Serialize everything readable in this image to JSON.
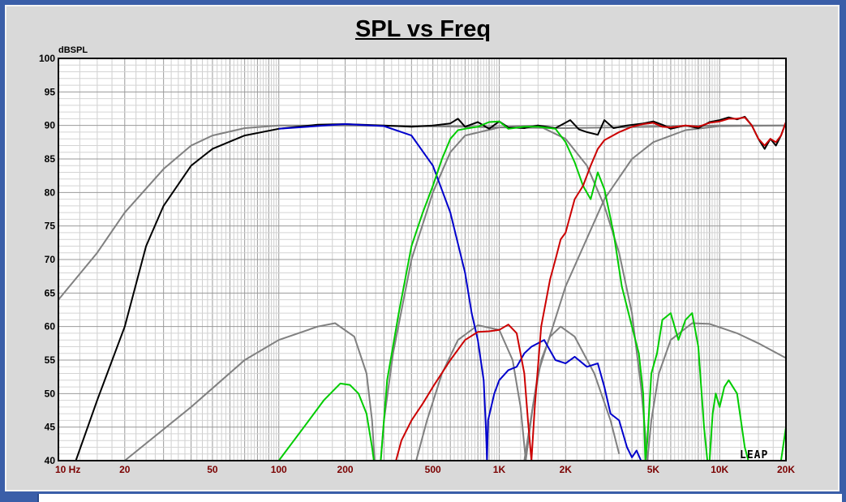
{
  "chart_data": {
    "type": "line",
    "title": "SPL vs Freq",
    "ylabel": "dBSPL",
    "xlabel": "",
    "x_scale": "log",
    "xlim": [
      10,
      20000
    ],
    "ylim": [
      40,
      100
    ],
    "grid": true,
    "x_tick_labels": [
      {
        "value": 10,
        "label": "10 Hz"
      },
      {
        "value": 20,
        "label": "20"
      },
      {
        "value": 50,
        "label": "50"
      },
      {
        "value": 100,
        "label": "100"
      },
      {
        "value": 200,
        "label": "200"
      },
      {
        "value": 500,
        "label": "500"
      },
      {
        "value": 1000,
        "label": "1K"
      },
      {
        "value": 2000,
        "label": "2K"
      },
      {
        "value": 5000,
        "label": "5K"
      },
      {
        "value": 10000,
        "label": "10K"
      },
      {
        "value": 20000,
        "label": "20K"
      }
    ],
    "y_tick_labels": [
      "40",
      "45",
      "50",
      "55",
      "60",
      "65",
      "70",
      "75",
      "80",
      "85",
      "90",
      "95",
      "100"
    ],
    "watermark": "LEAP",
    "series": [
      {
        "color": "#808080",
        "points": [
          [
            10,
            64
          ],
          [
            15,
            71
          ],
          [
            20,
            77
          ],
          [
            30,
            83.5
          ],
          [
            40,
            87
          ],
          [
            50,
            88.5
          ],
          [
            70,
            89.6
          ],
          [
            100,
            90
          ],
          [
            200,
            90
          ],
          [
            400,
            89.9
          ],
          [
            700,
            89.8
          ],
          [
            1000,
            89.7
          ],
          [
            2000,
            89.6
          ],
          [
            5000,
            89.8
          ],
          [
            10000,
            90
          ],
          [
            20000,
            90
          ]
        ]
      },
      {
        "color": "#808080",
        "points": [
          [
            10,
            30
          ],
          [
            20,
            40
          ],
          [
            40,
            48
          ],
          [
            70,
            55
          ],
          [
            100,
            58
          ],
          [
            150,
            60
          ],
          [
            180,
            60.5
          ],
          [
            220,
            58.5
          ],
          [
            250,
            53
          ],
          [
            265,
            46
          ],
          [
            272,
            40
          ]
        ]
      },
      {
        "color": "#808080",
        "points": [
          [
            290,
            40
          ],
          [
            300,
            46
          ],
          [
            330,
            56
          ],
          [
            400,
            70
          ],
          [
            500,
            80
          ],
          [
            600,
            86
          ],
          [
            700,
            88.5
          ],
          [
            1000,
            89.7
          ],
          [
            1500,
            90
          ],
          [
            2000,
            88
          ],
          [
            2500,
            84
          ],
          [
            3000,
            78
          ],
          [
            3500,
            71
          ],
          [
            4000,
            62
          ],
          [
            4400,
            51
          ],
          [
            4600,
            44
          ],
          [
            4700,
            40
          ]
        ]
      },
      {
        "color": "#808080",
        "points": [
          [
            420,
            40
          ],
          [
            470,
            46
          ],
          [
            550,
            53
          ],
          [
            650,
            58
          ],
          [
            800,
            60.2
          ],
          [
            1000,
            59.5
          ],
          [
            1150,
            55
          ],
          [
            1250,
            48
          ],
          [
            1320,
            40
          ],
          [
            1420,
            48
          ],
          [
            1550,
            55
          ],
          [
            1700,
            58.5
          ],
          [
            1900,
            60
          ],
          [
            2200,
            58.5
          ],
          [
            2700,
            53
          ],
          [
            3200,
            46
          ],
          [
            3500,
            41
          ]
        ]
      },
      {
        "color": "#808080",
        "points": [
          [
            1300,
            40
          ],
          [
            1500,
            53
          ],
          [
            2000,
            66
          ],
          [
            3000,
            79
          ],
          [
            4000,
            85
          ],
          [
            5000,
            87.5
          ],
          [
            7000,
            89.3
          ],
          [
            10000,
            89.9
          ],
          [
            20000,
            90
          ]
        ]
      },
      {
        "color": "#808080",
        "points": [
          [
            4700,
            40
          ],
          [
            4900,
            46
          ],
          [
            5300,
            53
          ],
          [
            6000,
            58
          ],
          [
            7500,
            60.5
          ],
          [
            9000,
            60.4
          ],
          [
            12000,
            59
          ],
          [
            15000,
            57.5
          ],
          [
            20000,
            55.3
          ]
        ]
      },
      {
        "color": "#000000",
        "points": [
          [
            10,
            35
          ],
          [
            12,
            40
          ],
          [
            15,
            49
          ],
          [
            20,
            60
          ],
          [
            25,
            72
          ],
          [
            30,
            78
          ],
          [
            40,
            84
          ],
          [
            50,
            86.5
          ],
          [
            70,
            88.5
          ],
          [
            100,
            89.5
          ],
          [
            150,
            90.1
          ],
          [
            200,
            90.2
          ],
          [
            300,
            90
          ],
          [
            400,
            89.8
          ],
          [
            500,
            90
          ],
          [
            600,
            90.3
          ],
          [
            650,
            91
          ],
          [
            700,
            89.8
          ],
          [
            800,
            90.5
          ],
          [
            900,
            89.5
          ],
          [
            1000,
            90.6
          ],
          [
            1100,
            89.7
          ],
          [
            1300,
            89.6
          ],
          [
            1500,
            90
          ],
          [
            1800,
            89.6
          ],
          [
            2100,
            90.8
          ],
          [
            2300,
            89.4
          ],
          [
            2500,
            89
          ],
          [
            2800,
            88.6
          ],
          [
            3000,
            90.8
          ],
          [
            3300,
            89.6
          ],
          [
            3800,
            90
          ],
          [
            4500,
            90.3
          ],
          [
            5000,
            90.6
          ],
          [
            5600,
            90
          ],
          [
            6000,
            89.5
          ],
          [
            7000,
            90
          ],
          [
            8000,
            89.6
          ],
          [
            9000,
            90.5
          ],
          [
            10000,
            90.8
          ],
          [
            11000,
            91.2
          ],
          [
            12000,
            90.9
          ],
          [
            13000,
            91.3
          ],
          [
            14000,
            90
          ],
          [
            15000,
            88
          ],
          [
            16000,
            86.5
          ],
          [
            17000,
            88
          ],
          [
            18000,
            87
          ],
          [
            19000,
            88.5
          ],
          [
            20000,
            90.5
          ]
        ]
      },
      {
        "color": "#0000cc",
        "points": [
          [
            100,
            89.5
          ],
          [
            200,
            90.2
          ],
          [
            300,
            89.9
          ],
          [
            400,
            88.5
          ],
          [
            500,
            84
          ],
          [
            600,
            77
          ],
          [
            700,
            68
          ],
          [
            750,
            62
          ],
          [
            800,
            58
          ],
          [
            850,
            52
          ],
          [
            870,
            45
          ],
          [
            880,
            40
          ],
          [
            890,
            46
          ],
          [
            950,
            50
          ],
          [
            1000,
            52
          ],
          [
            1100,
            53.5
          ],
          [
            1200,
            54
          ],
          [
            1300,
            56
          ],
          [
            1400,
            57
          ],
          [
            1600,
            58
          ],
          [
            1800,
            55
          ],
          [
            2000,
            54.5
          ],
          [
            2200,
            55.5
          ],
          [
            2500,
            54
          ],
          [
            2800,
            54.5
          ],
          [
            3000,
            51
          ],
          [
            3200,
            47
          ],
          [
            3500,
            46
          ],
          [
            3800,
            42
          ],
          [
            4000,
            40.5
          ],
          [
            4200,
            41.5
          ],
          [
            4400,
            40
          ]
        ]
      },
      {
        "color": "#00cc00",
        "points": [
          [
            100,
            40
          ],
          [
            130,
            45
          ],
          [
            160,
            49
          ],
          [
            190,
            51.5
          ],
          [
            210,
            51.3
          ],
          [
            230,
            50
          ],
          [
            250,
            47
          ],
          [
            265,
            42
          ],
          [
            270,
            40
          ],
          [
            290,
            40
          ],
          [
            310,
            52
          ],
          [
            350,
            62
          ],
          [
            400,
            72
          ],
          [
            450,
            77
          ],
          [
            500,
            81
          ],
          [
            550,
            85
          ],
          [
            600,
            88
          ],
          [
            650,
            89.3
          ],
          [
            700,
            89.5
          ],
          [
            800,
            89.8
          ],
          [
            900,
            90.5
          ],
          [
            1000,
            90.6
          ],
          [
            1100,
            89.5
          ],
          [
            1300,
            89.8
          ],
          [
            1500,
            89.8
          ],
          [
            1800,
            89.5
          ],
          [
            2000,
            87.5
          ],
          [
            2200,
            84.5
          ],
          [
            2400,
            81
          ],
          [
            2600,
            79
          ],
          [
            2800,
            83
          ],
          [
            3000,
            80.5
          ],
          [
            3300,
            74
          ],
          [
            3600,
            66
          ],
          [
            4000,
            60
          ],
          [
            4300,
            56
          ],
          [
            4500,
            50
          ],
          [
            4600,
            40
          ],
          [
            4700,
            43
          ],
          [
            4900,
            53
          ],
          [
            5200,
            56
          ],
          [
            5500,
            61
          ],
          [
            6000,
            62
          ],
          [
            6500,
            58
          ],
          [
            7000,
            61
          ],
          [
            7500,
            62
          ],
          [
            8000,
            57
          ],
          [
            8500,
            45
          ],
          [
            8800,
            40
          ],
          [
            9000,
            40
          ],
          [
            9300,
            47
          ],
          [
            9600,
            50
          ],
          [
            10000,
            48
          ],
          [
            10500,
            51
          ],
          [
            11000,
            52
          ],
          [
            12000,
            50
          ],
          [
            13000,
            42
          ],
          [
            13500,
            40
          ],
          [
            18000,
            40
          ],
          [
            19000,
            40
          ],
          [
            20000,
            45
          ]
        ]
      },
      {
        "color": "#cc0000",
        "points": [
          [
            10,
            40
          ],
          [
            300,
            40
          ],
          [
            340,
            40
          ],
          [
            360,
            43
          ],
          [
            400,
            46
          ],
          [
            450,
            48.5
          ],
          [
            500,
            51
          ],
          [
            600,
            55
          ],
          [
            700,
            58
          ],
          [
            800,
            59.2
          ],
          [
            900,
            59.3
          ],
          [
            1000,
            59.5
          ],
          [
            1100,
            60.3
          ],
          [
            1200,
            59
          ],
          [
            1300,
            53
          ],
          [
            1350,
            46
          ],
          [
            1400,
            40
          ],
          [
            1450,
            48
          ],
          [
            1550,
            60
          ],
          [
            1700,
            67
          ],
          [
            1800,
            70
          ],
          [
            1900,
            73
          ],
          [
            2000,
            74
          ],
          [
            2200,
            79
          ],
          [
            2400,
            81
          ],
          [
            2600,
            84
          ],
          [
            2800,
            86.5
          ],
          [
            3000,
            87.8
          ],
          [
            3500,
            89
          ],
          [
            4000,
            89.8
          ],
          [
            4500,
            90.2
          ],
          [
            5000,
            90.4
          ],
          [
            5500,
            89.8
          ],
          [
            6000,
            89.7
          ],
          [
            7000,
            90
          ],
          [
            8000,
            89.8
          ],
          [
            9000,
            90.4
          ],
          [
            10000,
            90.6
          ],
          [
            11000,
            91
          ],
          [
            12000,
            91
          ],
          [
            13000,
            91.2
          ],
          [
            14000,
            90
          ],
          [
            15000,
            88
          ],
          [
            16000,
            87
          ],
          [
            17000,
            88
          ],
          [
            18000,
            87.5
          ],
          [
            19000,
            88.5
          ],
          [
            20000,
            90.5
          ]
        ]
      }
    ]
  }
}
